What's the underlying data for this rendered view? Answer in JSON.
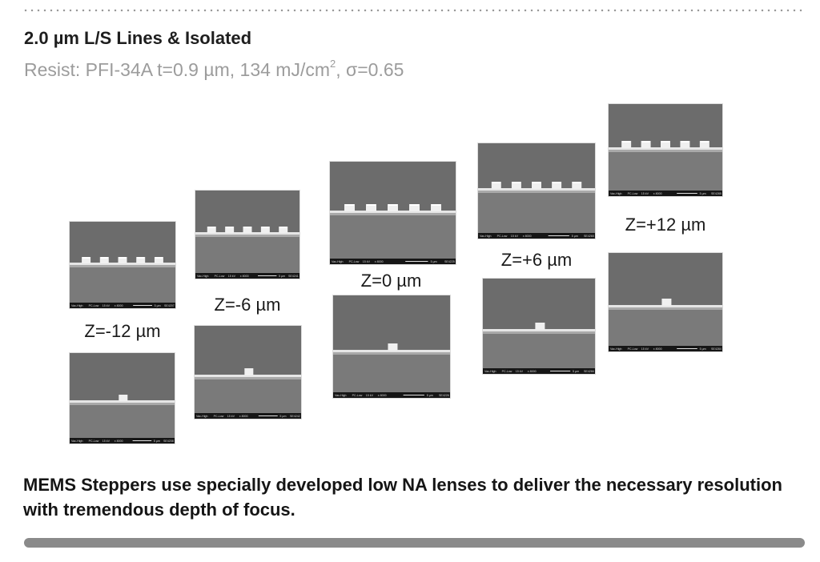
{
  "title": "2.0 µm L/S Lines & Isolated",
  "subtitle": {
    "prefix": "Resist: PFI-34A t=0.9 µm, 134 mJ/cm",
    "sup": "2",
    "suffix": ", σ=0.65"
  },
  "micrograph_footer": {
    "vac": "Vac-High",
    "detector": "PC-Low",
    "kv": "15 kV",
    "mag": "x 8000",
    "scale": "5 µm",
    "ids": [
      "SE4207",
      "SE4208",
      "SE4241",
      "SE4242",
      "SE4225",
      "SE4226",
      "SE4265",
      "SE4266",
      "SE4285",
      "SE4284"
    ]
  },
  "focus_columns": [
    {
      "label": "Z=-12 µm",
      "dense_lines": 5
    },
    {
      "label": "Z=-6 µm",
      "dense_lines": 5
    },
    {
      "label": "Z=0 µm",
      "dense_lines": 5
    },
    {
      "label": "Z=+6 µm",
      "dense_lines": 5
    },
    {
      "label": "Z=+12 µm",
      "dense_lines": 5
    }
  ],
  "footer_text": "MEMS Steppers use specially developed low NA lenses to deliver the necessary resolution with tremendous depth of focus.",
  "colors": {
    "sem_top": "#6c6c6c",
    "sem_bottom": "#7a7a7a",
    "sem_edge": "#e6e6e6",
    "sem_footer": "#161616"
  }
}
